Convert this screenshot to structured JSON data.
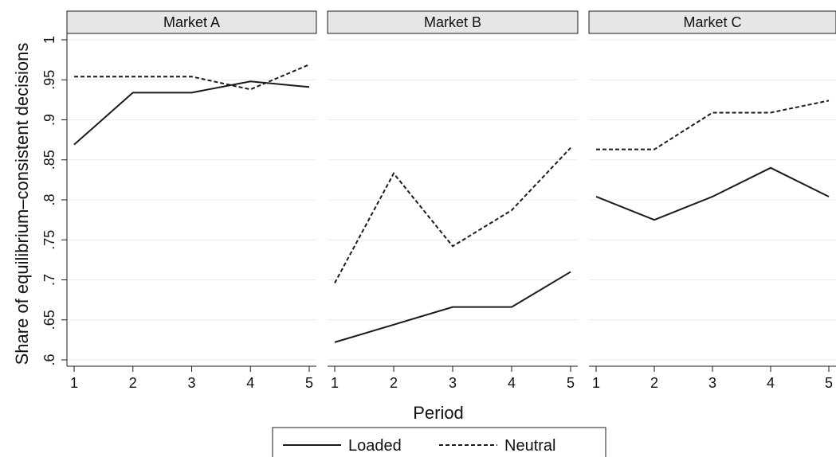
{
  "chart_data": {
    "type": "line",
    "ylabel": "Share of equilibrium–consistent decisions",
    "xlabel": "Period",
    "ylim": [
      0.6,
      1.0
    ],
    "y_ticks": [
      ".6",
      ".65",
      ".7",
      ".75",
      ".8",
      ".85",
      ".9",
      ".95",
      "1"
    ],
    "y_tick_values": [
      0.6,
      0.65,
      0.7,
      0.75,
      0.8,
      0.85,
      0.9,
      0.95,
      1.0
    ],
    "x": [
      1,
      2,
      3,
      4,
      5
    ],
    "x_ticks": [
      "1",
      "2",
      "3",
      "4",
      "5"
    ],
    "grid": true,
    "legend_position": "bottom",
    "legend": [
      {
        "name": "Loaded",
        "style": "solid"
      },
      {
        "name": "Neutral",
        "style": "dashed"
      }
    ],
    "panels": [
      {
        "title": "Market A",
        "series": [
          {
            "name": "Loaded",
            "values": [
              0.869,
              0.934,
              0.934,
              0.948,
              0.941
            ]
          },
          {
            "name": "Neutral",
            "values": [
              0.954,
              0.954,
              0.954,
              0.938,
              0.969
            ]
          }
        ]
      },
      {
        "title": "Market B",
        "series": [
          {
            "name": "Loaded",
            "values": [
              0.622,
              0.644,
              0.666,
              0.666,
              0.71
            ]
          },
          {
            "name": "Neutral",
            "values": [
              0.696,
              0.833,
              0.742,
              0.787,
              0.865
            ]
          }
        ]
      },
      {
        "title": "Market C",
        "series": [
          {
            "name": "Loaded",
            "values": [
              0.804,
              0.775,
              0.804,
              0.84,
              0.804
            ]
          },
          {
            "name": "Neutral",
            "values": [
              0.863,
              0.863,
              0.909,
              0.909,
              0.924
            ]
          }
        ]
      }
    ],
    "colors": {
      "line": "#1a1a1a",
      "strip_fill": "#e6e6e6",
      "grid": "#ebebeb"
    }
  }
}
